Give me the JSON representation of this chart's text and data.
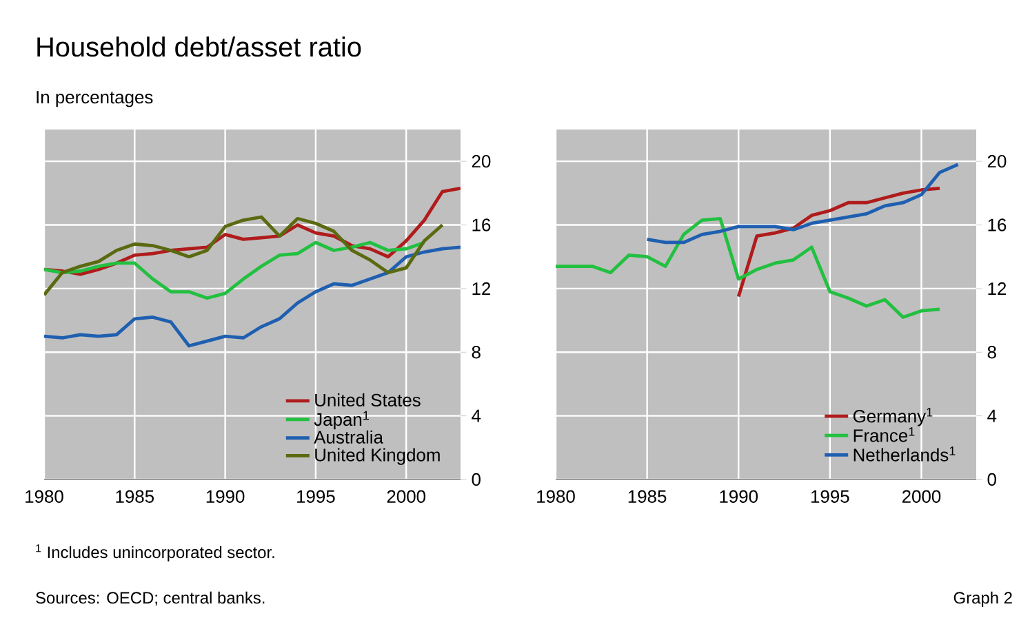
{
  "chart_data": [
    {
      "type": "line",
      "title": "Household debt/asset ratio",
      "subtitle": "In percentages",
      "annotations": [
        "$^{1}$ Includes unincorporated sector.",
        "Sources: OECD; central banks.",
        "Graph 2"
      ],
      "xlim": [
        1980,
        2003
      ],
      "ylim": [
        0,
        22
      ],
      "xticks": [
        1980,
        1985,
        1990,
        1995,
        2000
      ],
      "yticks": [
        0,
        4,
        8,
        12,
        16,
        20
      ],
      "grid": true,
      "legend": "bottom right",
      "series": [
        {
          "name": "United States",
          "color": "#b01c1c",
          "x": [
            1980,
            1981,
            1982,
            1983,
            1984,
            1985,
            1986,
            1987,
            1988,
            1989,
            1990,
            1991,
            1992,
            1993,
            1994,
            1995,
            1996,
            1997,
            1998,
            1999,
            2000,
            2001,
            2002,
            2003
          ],
          "values": [
            13.2,
            13.1,
            12.9,
            13.2,
            13.6,
            14.1,
            14.2,
            14.4,
            14.5,
            14.6,
            15.4,
            15.1,
            15.2,
            15.3,
            16.0,
            15.5,
            15.3,
            14.7,
            14.5,
            14.0,
            15.0,
            16.3,
            18.1,
            18.3
          ]
        },
        {
          "name": "Japan$^{1}$",
          "color": "#22c040",
          "x": [
            1980,
            1981,
            1982,
            1983,
            1984,
            1985,
            1986,
            1987,
            1988,
            1989,
            1990,
            1991,
            1992,
            1993,
            1994,
            1995,
            1996,
            1997,
            1998,
            1999,
            2000,
            2001
          ],
          "values": [
            13.2,
            13.0,
            13.1,
            13.4,
            13.6,
            13.6,
            12.6,
            11.8,
            11.8,
            11.4,
            11.7,
            12.6,
            13.4,
            14.1,
            14.2,
            14.9,
            14.4,
            14.6,
            14.9,
            14.4,
            14.5,
            14.9
          ]
        },
        {
          "name": "Australia",
          "color": "#1f5fb0",
          "x": [
            1980,
            1981,
            1982,
            1983,
            1984,
            1985,
            1986,
            1987,
            1988,
            1989,
            1990,
            1991,
            1992,
            1993,
            1994,
            1995,
            1996,
            1997,
            1998,
            1999,
            2000,
            2001,
            2002,
            2003
          ],
          "values": [
            9.0,
            8.9,
            9.1,
            9.0,
            9.1,
            10.1,
            10.2,
            9.9,
            8.4,
            8.7,
            9.0,
            8.9,
            9.6,
            10.1,
            11.1,
            11.8,
            12.3,
            12.2,
            12.6,
            13.0,
            14.0,
            14.3,
            14.5,
            14.6
          ]
        },
        {
          "name": "United Kingdom",
          "color": "#5a6a10",
          "x": [
            1980,
            1981,
            1982,
            1983,
            1984,
            1985,
            1986,
            1987,
            1988,
            1989,
            1990,
            1991,
            1992,
            1993,
            1994,
            1995,
            1996,
            1997,
            1998,
            1999,
            2000,
            2001,
            2002
          ],
          "values": [
            11.6,
            13.0,
            13.4,
            13.7,
            14.4,
            14.8,
            14.7,
            14.4,
            14.0,
            14.4,
            15.9,
            16.3,
            16.5,
            15.3,
            16.4,
            16.1,
            15.6,
            14.4,
            13.8,
            13.0,
            13.3,
            15.0,
            16.0
          ]
        }
      ]
    },
    {
      "type": "line",
      "xlim": [
        1980,
        2003
      ],
      "ylim": [
        0,
        22
      ],
      "xticks": [
        1980,
        1985,
        1990,
        1995,
        2000
      ],
      "yticks": [
        0,
        4,
        8,
        12,
        16,
        20
      ],
      "grid": true,
      "legend": "bottom right",
      "series": [
        {
          "name": "Germany$^{1}$",
          "color": "#b01c1c",
          "x": [
            1990,
            1991,
            1992,
            1993,
            1994,
            1995,
            1996,
            1997,
            1998,
            1999,
            2000,
            2001
          ],
          "values": [
            11.5,
            15.3,
            15.5,
            15.8,
            16.6,
            16.9,
            17.4,
            17.4,
            17.7,
            18.0,
            18.2,
            18.3
          ]
        },
        {
          "name": "France$^{1}$",
          "color": "#22c040",
          "x": [
            1980,
            1981,
            1982,
            1983,
            1984,
            1985,
            1986,
            1987,
            1988,
            1989,
            1990,
            1991,
            1992,
            1993,
            1994,
            1995,
            1996,
            1997,
            1998,
            1999,
            2000,
            2001
          ],
          "values": [
            13.4,
            13.4,
            13.4,
            13.0,
            14.1,
            14.0,
            13.4,
            15.4,
            16.3,
            16.4,
            12.6,
            13.2,
            13.6,
            13.8,
            14.6,
            11.8,
            11.4,
            10.9,
            11.3,
            10.2,
            10.6,
            10.7
          ]
        },
        {
          "name": "Netherlands$^{1}$",
          "color": "#1f5fb0",
          "x": [
            1985,
            1986,
            1987,
            1988,
            1989,
            1990,
            1991,
            1992,
            1993,
            1994,
            1995,
            1996,
            1997,
            1998,
            1999,
            2000,
            2001,
            2002
          ],
          "values": [
            15.1,
            14.9,
            14.9,
            15.4,
            15.6,
            15.9,
            15.9,
            15.9,
            15.7,
            16.1,
            16.3,
            16.5,
            16.7,
            17.2,
            17.4,
            17.9,
            19.3,
            19.8
          ]
        }
      ]
    }
  ]
}
